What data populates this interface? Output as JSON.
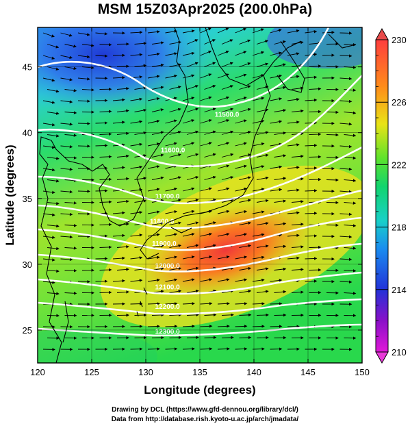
{
  "title": "MSM 15Z03Apr2025 (200.0hPa)",
  "map": {
    "x_label": "Longitude (degrees)",
    "y_label": "Latitude  (degrees)",
    "lon_range": [
      120,
      150
    ],
    "lat_range": [
      22.5,
      48
    ],
    "x_ticks": [
      "120",
      "125",
      "130",
      "135",
      "140",
      "145",
      "150"
    ],
    "x_tick_values": [
      120,
      125,
      130,
      135,
      140,
      145,
      150
    ],
    "y_ticks": [
      "25",
      "30",
      "35",
      "40",
      "45"
    ],
    "y_tick_values": [
      25,
      30,
      35,
      40,
      45
    ],
    "contour_labels": [
      {
        "text": "11500.0",
        "lon": 137.5,
        "lat": 41.2
      },
      {
        "text": "11600.0",
        "lon": 132.5,
        "lat": 38.5
      },
      {
        "text": "11700.0",
        "lon": 132.0,
        "lat": 35.0
      },
      {
        "text": "11800.0",
        "lon": 131.5,
        "lat": 33.1
      },
      {
        "text": "11900.0",
        "lon": 131.7,
        "lat": 31.4
      },
      {
        "text": "12000.0",
        "lon": 132.0,
        "lat": 29.7
      },
      {
        "text": "12100.0",
        "lon": 132.0,
        "lat": 28.1
      },
      {
        "text": "12200.0",
        "lon": 132.0,
        "lat": 26.6
      },
      {
        "text": "12300.0",
        "lon": 132.0,
        "lat": 24.7
      }
    ]
  },
  "colorbar": {
    "labels": [
      "230",
      "226",
      "222",
      "218",
      "214",
      "210"
    ],
    "values": [
      230,
      226,
      222,
      218,
      214,
      210
    ],
    "colors": [
      "#ff3e3e",
      "#ff8c1a",
      "#e9e316",
      "#5ee32c",
      "#12d46e",
      "#18d0c8",
      "#1a8cf0",
      "#2232d8",
      "#8a10c8",
      "#e019d8"
    ]
  },
  "credits": {
    "line1": "Drawing by DCL (https://www.gfd-dennou.org/library/dcl/)",
    "line2": "Data from http://database.rish.kyoto-u.ac.jp/arch/jmadata/"
  }
}
